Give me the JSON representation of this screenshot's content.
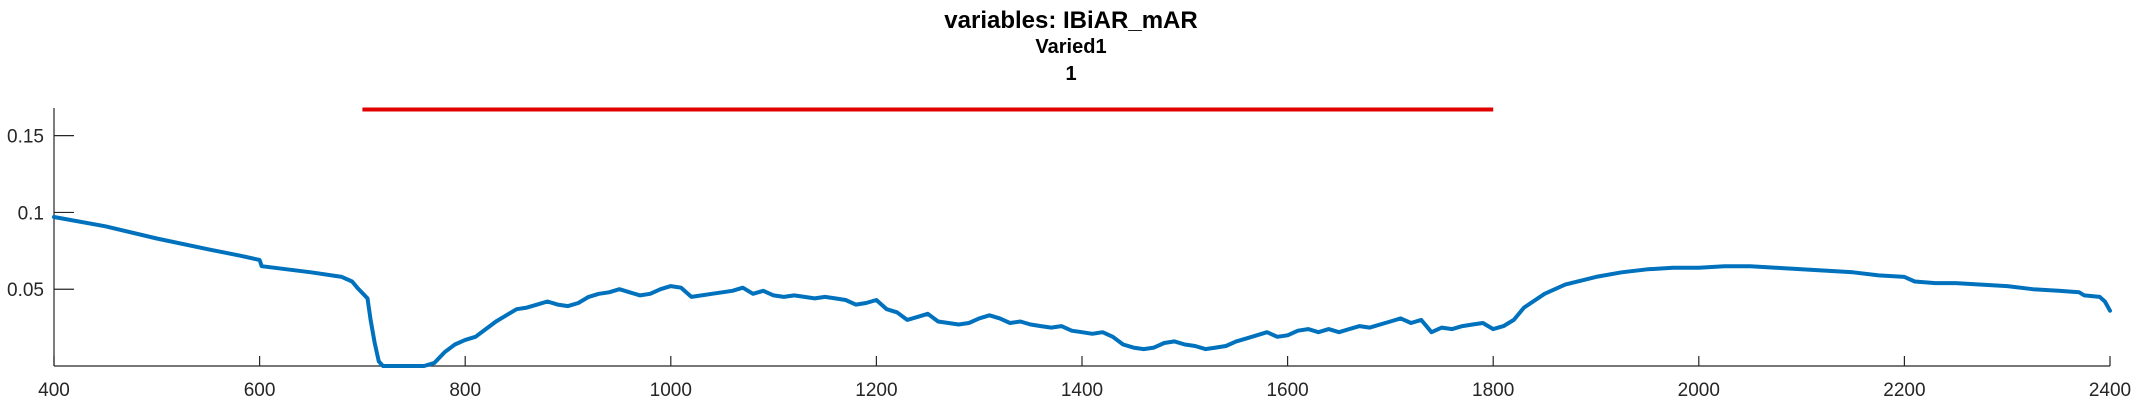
{
  "chart_data": {
    "type": "line",
    "title": "variables: IBiAR_mAR",
    "subtitle_lines": [
      "Varied1",
      "1"
    ],
    "xlabel": "",
    "ylabel": "",
    "xlim": [
      400,
      2400
    ],
    "ylim": [
      0,
      0.168
    ],
    "x_ticks": [
      400,
      600,
      800,
      1000,
      1200,
      1400,
      1600,
      1800,
      2000,
      2200,
      2400
    ],
    "y_ticks": [
      0.05,
      0.1,
      0.15
    ],
    "x_tick_labels": [
      "400",
      "600",
      "800",
      "1000",
      "1200",
      "1400",
      "1600",
      "1800",
      "2000",
      "2200",
      "2400"
    ],
    "y_tick_labels": [
      "0.05",
      "0.1",
      "0.15"
    ],
    "grid": false,
    "colors": {
      "line": "#0072BD",
      "range_bar": "#E00000",
      "axis": "#262626"
    },
    "series": [
      {
        "points": [
          [
            400,
            0.097
          ],
          [
            450,
            0.091
          ],
          [
            500,
            0.083
          ],
          [
            550,
            0.076
          ],
          [
            580,
            0.072
          ],
          [
            600,
            0.069
          ],
          [
            602,
            0.065
          ],
          [
            650,
            0.061
          ],
          [
            680,
            0.058
          ],
          [
            690,
            0.055
          ],
          [
            695,
            0.051
          ],
          [
            705,
            0.044
          ],
          [
            708,
            0.03
          ],
          [
            712,
            0.015
          ],
          [
            716,
            0.003
          ],
          [
            720,
            0.0
          ],
          [
            740,
            0.0
          ],
          [
            760,
            0.0
          ],
          [
            770,
            0.002
          ],
          [
            780,
            0.009
          ],
          [
            790,
            0.014
          ],
          [
            800,
            0.017
          ],
          [
            810,
            0.019
          ],
          [
            820,
            0.024
          ],
          [
            830,
            0.029
          ],
          [
            840,
            0.033
          ],
          [
            850,
            0.037
          ],
          [
            860,
            0.038
          ],
          [
            870,
            0.04
          ],
          [
            880,
            0.042
          ],
          [
            890,
            0.04
          ],
          [
            900,
            0.039
          ],
          [
            910,
            0.041
          ],
          [
            920,
            0.045
          ],
          [
            930,
            0.047
          ],
          [
            940,
            0.048
          ],
          [
            950,
            0.05
          ],
          [
            960,
            0.048
          ],
          [
            970,
            0.046
          ],
          [
            980,
            0.047
          ],
          [
            990,
            0.05
          ],
          [
            1000,
            0.052
          ],
          [
            1010,
            0.051
          ],
          [
            1020,
            0.045
          ],
          [
            1030,
            0.046
          ],
          [
            1040,
            0.047
          ],
          [
            1050,
            0.048
          ],
          [
            1060,
            0.049
          ],
          [
            1070,
            0.051
          ],
          [
            1080,
            0.047
          ],
          [
            1090,
            0.049
          ],
          [
            1100,
            0.046
          ],
          [
            1110,
            0.045
          ],
          [
            1120,
            0.046
          ],
          [
            1130,
            0.045
          ],
          [
            1140,
            0.044
          ],
          [
            1150,
            0.045
          ],
          [
            1160,
            0.044
          ],
          [
            1170,
            0.043
          ],
          [
            1180,
            0.04
          ],
          [
            1190,
            0.041
          ],
          [
            1200,
            0.043
          ],
          [
            1210,
            0.037
          ],
          [
            1220,
            0.035
          ],
          [
            1230,
            0.03
          ],
          [
            1240,
            0.032
          ],
          [
            1250,
            0.034
          ],
          [
            1260,
            0.029
          ],
          [
            1270,
            0.028
          ],
          [
            1280,
            0.027
          ],
          [
            1290,
            0.028
          ],
          [
            1300,
            0.031
          ],
          [
            1310,
            0.033
          ],
          [
            1320,
            0.031
          ],
          [
            1330,
            0.028
          ],
          [
            1340,
            0.029
          ],
          [
            1350,
            0.027
          ],
          [
            1360,
            0.026
          ],
          [
            1370,
            0.025
          ],
          [
            1380,
            0.026
          ],
          [
            1390,
            0.023
          ],
          [
            1400,
            0.022
          ],
          [
            1410,
            0.021
          ],
          [
            1420,
            0.022
          ],
          [
            1430,
            0.019
          ],
          [
            1440,
            0.014
          ],
          [
            1450,
            0.012
          ],
          [
            1460,
            0.011
          ],
          [
            1470,
            0.012
          ],
          [
            1480,
            0.015
          ],
          [
            1490,
            0.016
          ],
          [
            1500,
            0.014
          ],
          [
            1510,
            0.013
          ],
          [
            1520,
            0.011
          ],
          [
            1530,
            0.012
          ],
          [
            1540,
            0.013
          ],
          [
            1550,
            0.016
          ],
          [
            1560,
            0.018
          ],
          [
            1570,
            0.02
          ],
          [
            1580,
            0.022
          ],
          [
            1590,
            0.019
          ],
          [
            1600,
            0.02
          ],
          [
            1610,
            0.023
          ],
          [
            1620,
            0.024
          ],
          [
            1630,
            0.022
          ],
          [
            1640,
            0.024
          ],
          [
            1650,
            0.022
          ],
          [
            1660,
            0.024
          ],
          [
            1670,
            0.026
          ],
          [
            1680,
            0.025
          ],
          [
            1690,
            0.027
          ],
          [
            1700,
            0.029
          ],
          [
            1710,
            0.031
          ],
          [
            1720,
            0.028
          ],
          [
            1730,
            0.03
          ],
          [
            1740,
            0.022
          ],
          [
            1750,
            0.025
          ],
          [
            1760,
            0.024
          ],
          [
            1770,
            0.026
          ],
          [
            1780,
            0.027
          ],
          [
            1790,
            0.028
          ],
          [
            1800,
            0.024
          ],
          [
            1810,
            0.026
          ],
          [
            1820,
            0.03
          ],
          [
            1830,
            0.038
          ],
          [
            1850,
            0.047
          ],
          [
            1870,
            0.053
          ],
          [
            1900,
            0.058
          ],
          [
            1925,
            0.061
          ],
          [
            1950,
            0.063
          ],
          [
            1975,
            0.064
          ],
          [
            2000,
            0.064
          ],
          [
            2025,
            0.065
          ],
          [
            2050,
            0.065
          ],
          [
            2075,
            0.064
          ],
          [
            2100,
            0.063
          ],
          [
            2125,
            0.062
          ],
          [
            2150,
            0.061
          ],
          [
            2175,
            0.059
          ],
          [
            2200,
            0.058
          ],
          [
            2210,
            0.055
          ],
          [
            2230,
            0.054
          ],
          [
            2250,
            0.054
          ],
          [
            2275,
            0.053
          ],
          [
            2300,
            0.052
          ],
          [
            2325,
            0.05
          ],
          [
            2350,
            0.049
          ],
          [
            2370,
            0.048
          ],
          [
            2375,
            0.046
          ],
          [
            2390,
            0.045
          ],
          [
            2395,
            0.042
          ],
          [
            2400,
            0.036
          ]
        ]
      }
    ],
    "range_bar": {
      "x_start": 700,
      "x_end": 1800,
      "y": 0.167
    }
  }
}
